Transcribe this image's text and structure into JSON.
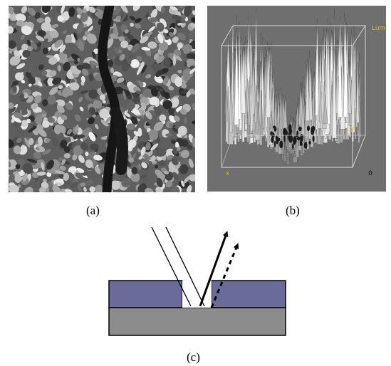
{
  "figure": {
    "panels": [
      {
        "id": "a",
        "caption": "(a)",
        "content": "grayscale micrograph"
      },
      {
        "id": "b",
        "caption": "(b)",
        "content": "3D luminance surface plot"
      },
      {
        "id": "c",
        "caption": "(c)",
        "content": "light reflection diagram"
      }
    ]
  },
  "surface_plot": {
    "z_label": "Lum",
    "y_label": "y",
    "x_label": "x",
    "origin_label": "0",
    "axis_label_color": "#d8c000",
    "background_color": "#6f6f6f"
  },
  "diagram": {
    "top_layer_color": "#6b6b9a",
    "substrate_color": "#8c8c8c",
    "outline_color": "#000000"
  }
}
